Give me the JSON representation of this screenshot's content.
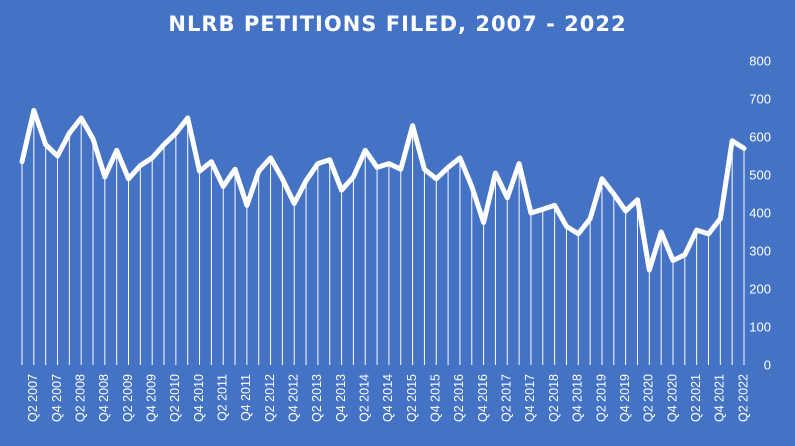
{
  "chart_data": {
    "type": "line",
    "title": "NLRB PETITIONS FILED, 2007 - 2022",
    "xlabel": "",
    "ylabel": "",
    "ylim": [
      0,
      800
    ],
    "y_ticks": [
      0,
      100,
      200,
      300,
      400,
      500,
      600,
      700,
      800
    ],
    "y_axis_side": "right",
    "drop_lines": true,
    "grid": false,
    "legend": "none",
    "x": [
      "Q1 2007",
      "Q2 2007",
      "Q3 2007",
      "Q4 2007",
      "Q1 2008",
      "Q2 2008",
      "Q3 2008",
      "Q4 2008",
      "Q1 2009",
      "Q2 2009",
      "Q3 2009",
      "Q4 2009",
      "Q1 2010",
      "Q2 2010",
      "Q3 2010",
      "Q4 2010",
      "Q1 2011",
      "Q2 2011",
      "Q3 2011",
      "Q4 2011",
      "Q1 2012",
      "Q2 2012",
      "Q3 2012",
      "Q4 2012",
      "Q1 2013",
      "Q2 2013",
      "Q3 2013",
      "Q4 2013",
      "Q1 2014",
      "Q2 2014",
      "Q3 2014",
      "Q4 2014",
      "Q1 2015",
      "Q2 2015",
      "Q3 2015",
      "Q4 2015",
      "Q1 2016",
      "Q2 2016",
      "Q3 2016",
      "Q4 2016",
      "Q1 2017",
      "Q2 2017",
      "Q3 2017",
      "Q4 2017",
      "Q1 2018",
      "Q2 2018",
      "Q3 2018",
      "Q4 2018",
      "Q1 2019",
      "Q2 2019",
      "Q3 2019",
      "Q4 2019",
      "Q1 2020",
      "Q2 2020",
      "Q3 2020",
      "Q4 2020",
      "Q1 2021",
      "Q2 2021",
      "Q3 2021",
      "Q4 2021",
      "Q1 2022",
      "Q2 2022"
    ],
    "x_tick_labels": [
      "Q2 2007",
      "Q4 2007",
      "Q2 2008",
      "Q4 2008",
      "Q2 2009",
      "Q4 2009",
      "Q2 2010",
      "Q4 2010",
      "Q2 2011",
      "Q4 2011",
      "Q2 2012",
      "Q4 2012",
      "Q2 2013",
      "Q4 2013",
      "Q2 2014",
      "Q4 2014",
      "Q2 2015",
      "Q4 2015",
      "Q2 2016",
      "Q4 2016",
      "Q2 2017",
      "Q4 2017",
      "Q2 2018",
      "Q4 2018",
      "Q2 2019",
      "Q4 2019",
      "Q2 2020",
      "Q4 2020",
      "Q2 2021",
      "Q4 2021",
      "Q2 2022"
    ],
    "series": [
      {
        "values": [
          535,
          670,
          580,
          550,
          610,
          650,
          595,
          495,
          565,
          490,
          525,
          545,
          580,
          610,
          650,
          510,
          535,
          470,
          515,
          420,
          510,
          545,
          490,
          425,
          485,
          530,
          540,
          460,
          495,
          565,
          520,
          530,
          515,
          630,
          515,
          490,
          520,
          545,
          470,
          375,
          505,
          440,
          530,
          400,
          410,
          420,
          365,
          345,
          385,
          490,
          450,
          405,
          435,
          250,
          350,
          275,
          290,
          355,
          345,
          385,
          590,
          570
        ]
      }
    ],
    "colors": {
      "background": "#4472c4",
      "line": "#ffffff",
      "text": "#ffffff"
    }
  }
}
